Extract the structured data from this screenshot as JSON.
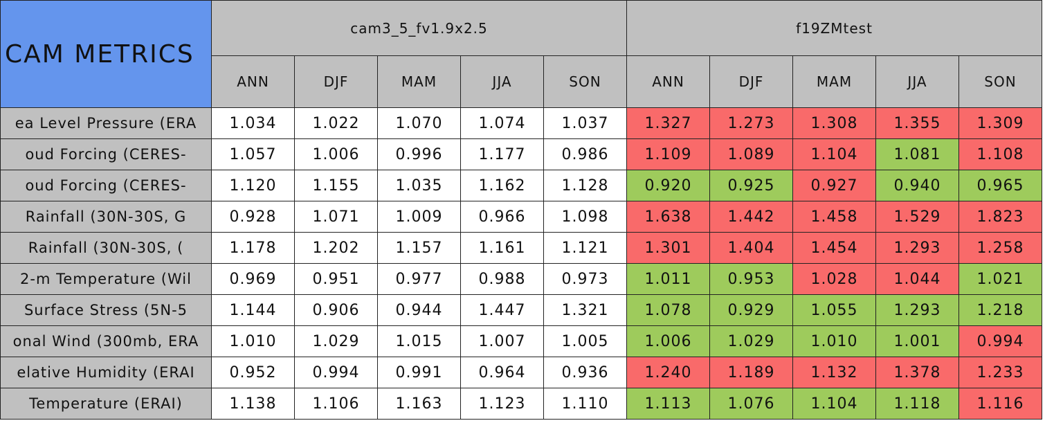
{
  "table": {
    "title": "CAM METRICS",
    "groups": [
      "cam3_5_fv1.9x2.5",
      "f19ZMtest"
    ],
    "seasons": [
      "ANN",
      "DJF",
      "MAM",
      "JJA",
      "SON"
    ],
    "header_color": "#c0c0c0",
    "title_color": "#6495ed",
    "rows": [
      {
        "label": "ea Level Pressure (ERA",
        "values": [
          "1.034",
          "1.022",
          "1.070",
          "1.074",
          "1.037",
          "1.327",
          "1.273",
          "1.308",
          "1.355",
          "1.309"
        ],
        "colors": [
          "#ffffff",
          "#ffffff",
          "#ffffff",
          "#ffffff",
          "#ffffff",
          "#f96a6a",
          "#f96a6a",
          "#f96a6a",
          "#f96a6a",
          "#f96a6a"
        ]
      },
      {
        "label": "oud Forcing (CERES-",
        "values": [
          "1.057",
          "1.006",
          "0.996",
          "1.177",
          "0.986",
          "1.109",
          "1.089",
          "1.104",
          "1.081",
          "1.108"
        ],
        "colors": [
          "#ffffff",
          "#ffffff",
          "#ffffff",
          "#ffffff",
          "#ffffff",
          "#f96a6a",
          "#f96a6a",
          "#f96a6a",
          "#9ecb5c",
          "#f96a6a"
        ]
      },
      {
        "label": "oud Forcing (CERES-",
        "values": [
          "1.120",
          "1.155",
          "1.035",
          "1.162",
          "1.128",
          "0.920",
          "0.925",
          "0.927",
          "0.940",
          "0.965"
        ],
        "colors": [
          "#ffffff",
          "#ffffff",
          "#ffffff",
          "#ffffff",
          "#ffffff",
          "#9ecb5c",
          "#9ecb5c",
          "#f96a6a",
          "#9ecb5c",
          "#9ecb5c"
        ]
      },
      {
        "label": "Rainfall (30N-30S, G",
        "values": [
          "0.928",
          "1.071",
          "1.009",
          "0.966",
          "1.098",
          "1.638",
          "1.442",
          "1.458",
          "1.529",
          "1.823"
        ],
        "colors": [
          "#ffffff",
          "#ffffff",
          "#ffffff",
          "#ffffff",
          "#ffffff",
          "#f96a6a",
          "#f96a6a",
          "#f96a6a",
          "#f96a6a",
          "#f96a6a"
        ]
      },
      {
        "label": "Rainfall (30N-30S, (",
        "values": [
          "1.178",
          "1.202",
          "1.157",
          "1.161",
          "1.121",
          "1.301",
          "1.404",
          "1.454",
          "1.293",
          "1.258"
        ],
        "colors": [
          "#ffffff",
          "#ffffff",
          "#ffffff",
          "#ffffff",
          "#ffffff",
          "#f96a6a",
          "#f96a6a",
          "#f96a6a",
          "#f96a6a",
          "#f96a6a"
        ]
      },
      {
        "label": "2-m Temperature (Wil",
        "values": [
          "0.969",
          "0.951",
          "0.977",
          "0.988",
          "0.973",
          "1.011",
          "0.953",
          "1.028",
          "1.044",
          "1.021"
        ],
        "colors": [
          "#ffffff",
          "#ffffff",
          "#ffffff",
          "#ffffff",
          "#ffffff",
          "#9ecb5c",
          "#9ecb5c",
          "#f96a6a",
          "#f96a6a",
          "#9ecb5c"
        ]
      },
      {
        "label": "Surface Stress (5N-5",
        "values": [
          "1.144",
          "0.906",
          "0.944",
          "1.447",
          "1.321",
          "1.078",
          "0.929",
          "1.055",
          "1.293",
          "1.218"
        ],
        "colors": [
          "#ffffff",
          "#ffffff",
          "#ffffff",
          "#ffffff",
          "#ffffff",
          "#9ecb5c",
          "#9ecb5c",
          "#9ecb5c",
          "#9ecb5c",
          "#9ecb5c"
        ]
      },
      {
        "label": "onal Wind (300mb, ERA",
        "values": [
          "1.010",
          "1.029",
          "1.015",
          "1.007",
          "1.005",
          "1.006",
          "1.029",
          "1.010",
          "1.001",
          "0.994"
        ],
        "colors": [
          "#ffffff",
          "#ffffff",
          "#ffffff",
          "#ffffff",
          "#ffffff",
          "#9ecb5c",
          "#9ecb5c",
          "#9ecb5c",
          "#9ecb5c",
          "#f96a6a"
        ]
      },
      {
        "label": "elative Humidity (ERAI",
        "values": [
          "0.952",
          "0.994",
          "0.991",
          "0.964",
          "0.936",
          "1.240",
          "1.189",
          "1.132",
          "1.378",
          "1.233"
        ],
        "colors": [
          "#ffffff",
          "#ffffff",
          "#ffffff",
          "#ffffff",
          "#ffffff",
          "#f96a6a",
          "#f96a6a",
          "#f96a6a",
          "#f96a6a",
          "#f96a6a"
        ]
      },
      {
        "label": "Temperature (ERAI)",
        "values": [
          "1.138",
          "1.106",
          "1.163",
          "1.123",
          "1.110",
          "1.113",
          "1.076",
          "1.104",
          "1.118",
          "1.116"
        ],
        "colors": [
          "#ffffff",
          "#ffffff",
          "#ffffff",
          "#ffffff",
          "#ffffff",
          "#9ecb5c",
          "#9ecb5c",
          "#9ecb5c",
          "#9ecb5c",
          "#f96a6a"
        ]
      }
    ]
  }
}
